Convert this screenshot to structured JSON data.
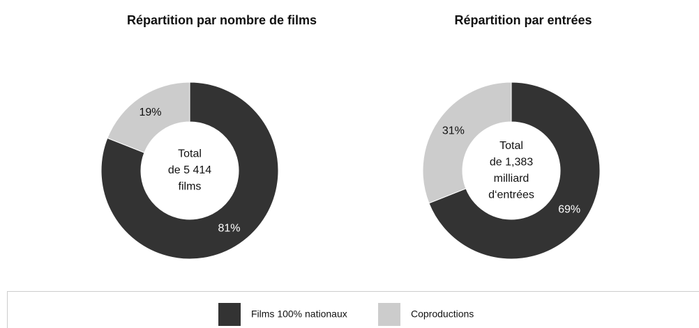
{
  "chart_data": [
    {
      "type": "pie",
      "donut": true,
      "title": "Répartition par nombre de films",
      "categories": [
        "Films 100% nationaux",
        "Coproductions"
      ],
      "values": [
        81,
        19
      ],
      "value_labels": [
        "81%",
        "19%"
      ],
      "colors": [
        "#333333",
        "#cccccc"
      ],
      "annotation": [
        "Total",
        "de 5 414",
        "films"
      ]
    },
    {
      "type": "pie",
      "donut": true,
      "title": "Répartition par entrées",
      "categories": [
        "Films 100% nationaux",
        "Coproductions"
      ],
      "values": [
        69,
        31
      ],
      "value_labels": [
        "69%",
        "31%"
      ],
      "colors": [
        "#333333",
        "#cccccc"
      ],
      "annotation": [
        "Total",
        "de 1,383",
        "milliard",
        "d‘entrées"
      ]
    }
  ]
}
